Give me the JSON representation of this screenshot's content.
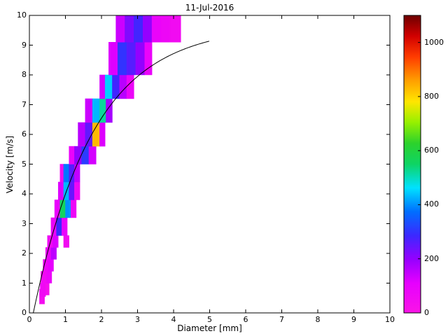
{
  "figure": {
    "background": "#ffffff",
    "axis_color": "#000000"
  },
  "chart_data": {
    "type": "heatmap",
    "title": "11-Jul-2016",
    "xlabel": "Diameter [mm]",
    "ylabel": "Velocity [m/s]",
    "xlim": [
      0,
      10
    ],
    "ylim": [
      0,
      10
    ],
    "grid": false,
    "x_ticks": [
      0,
      1,
      2,
      3,
      4,
      5,
      6,
      7,
      8,
      9,
      10
    ],
    "y_ticks": [
      0,
      1,
      2,
      3,
      4,
      5,
      6,
      7,
      8,
      9,
      10
    ],
    "colorbar": {
      "position": "right",
      "min": 0,
      "max": 1100,
      "ticks": [
        0,
        200,
        400,
        600,
        800,
        1000
      ]
    },
    "colormap_stops": [
      {
        "t": 0.0,
        "color": "#fa14e6"
      },
      {
        "t": 0.1,
        "color": "#e600ff"
      },
      {
        "t": 0.18,
        "color": "#9600ff"
      },
      {
        "t": 0.26,
        "color": "#3c28ff"
      },
      {
        "t": 0.34,
        "color": "#006eff"
      },
      {
        "t": 0.42,
        "color": "#00e1ff"
      },
      {
        "t": 0.5,
        "color": "#0ed464"
      },
      {
        "t": 0.57,
        "color": "#2cd22c"
      },
      {
        "t": 0.64,
        "color": "#96f000"
      },
      {
        "t": 0.71,
        "color": "#ffe600"
      },
      {
        "t": 0.78,
        "color": "#ffa000"
      },
      {
        "t": 0.86,
        "color": "#ff3c00"
      },
      {
        "t": 0.93,
        "color": "#d20000"
      },
      {
        "t": 1.0,
        "color": "#6e0000"
      }
    ],
    "cell_format": [
      "d_min_mm",
      "d_max_mm",
      "v_min_ms",
      "v_max_ms",
      "count"
    ],
    "cells": [
      [
        0.28,
        0.42,
        0.3,
        0.8,
        40
      ],
      [
        0.3,
        0.45,
        0.55,
        1.0,
        60
      ],
      [
        0.45,
        0.55,
        0.6,
        1.0,
        35
      ],
      [
        0.32,
        0.47,
        1.0,
        1.4,
        55
      ],
      [
        0.47,
        0.62,
        1.0,
        1.4,
        85
      ],
      [
        0.38,
        0.52,
        1.4,
        1.8,
        70
      ],
      [
        0.52,
        0.67,
        1.4,
        1.8,
        105
      ],
      [
        0.45,
        0.6,
        1.8,
        2.2,
        80
      ],
      [
        0.6,
        0.75,
        1.8,
        2.2,
        155
      ],
      [
        0.5,
        0.65,
        2.2,
        2.6,
        60
      ],
      [
        0.65,
        0.8,
        2.2,
        2.6,
        120
      ],
      [
        0.95,
        1.1,
        2.2,
        2.6,
        50
      ],
      [
        0.6,
        0.75,
        2.6,
        3.2,
        80
      ],
      [
        0.75,
        0.9,
        2.6,
        3.2,
        285
      ],
      [
        0.9,
        1.05,
        2.6,
        3.2,
        95
      ],
      [
        0.7,
        0.85,
        3.2,
        3.8,
        95
      ],
      [
        0.85,
        1.0,
        3.2,
        3.8,
        560
      ],
      [
        1.0,
        1.15,
        3.2,
        3.8,
        400
      ],
      [
        1.15,
        1.3,
        3.2,
        3.8,
        70
      ],
      [
        0.8,
        0.95,
        3.8,
        4.4,
        120
      ],
      [
        0.95,
        1.1,
        3.8,
        4.4,
        430
      ],
      [
        1.1,
        1.25,
        3.8,
        4.4,
        240
      ],
      [
        1.25,
        1.4,
        3.8,
        4.4,
        60
      ],
      [
        0.85,
        0.95,
        4.4,
        5.0,
        50
      ],
      [
        0.95,
        1.1,
        4.4,
        5.0,
        380
      ],
      [
        1.1,
        1.25,
        4.4,
        5.0,
        260
      ],
      [
        1.25,
        1.4,
        4.4,
        5.0,
        150
      ],
      [
        1.1,
        1.25,
        5.0,
        5.6,
        90
      ],
      [
        1.25,
        1.45,
        5.0,
        5.6,
        200
      ],
      [
        1.45,
        1.65,
        5.0,
        5.6,
        310
      ],
      [
        1.65,
        1.85,
        5.0,
        5.6,
        130
      ],
      [
        1.35,
        1.55,
        5.6,
        6.4,
        160
      ],
      [
        1.55,
        1.75,
        5.6,
        6.4,
        250
      ],
      [
        1.75,
        1.95,
        5.6,
        6.4,
        830
      ],
      [
        1.95,
        2.1,
        5.6,
        6.4,
        120
      ],
      [
        1.55,
        1.75,
        6.4,
        7.2,
        140
      ],
      [
        1.75,
        1.95,
        6.4,
        7.2,
        430
      ],
      [
        1.95,
        2.125,
        6.4,
        7.2,
        520
      ],
      [
        2.125,
        2.3,
        6.4,
        7.2,
        180
      ],
      [
        1.95,
        2.1,
        7.2,
        8.0,
        130
      ],
      [
        2.1,
        2.3,
        7.2,
        8.0,
        450
      ],
      [
        2.3,
        2.5,
        7.2,
        8.0,
        280
      ],
      [
        2.5,
        2.7,
        7.2,
        8.0,
        160
      ],
      [
        2.7,
        2.9,
        7.2,
        8.0,
        80
      ],
      [
        2.2,
        2.45,
        8.0,
        9.1,
        120
      ],
      [
        2.45,
        2.7,
        8.0,
        9.1,
        300
      ],
      [
        2.7,
        2.95,
        8.0,
        9.1,
        260
      ],
      [
        2.95,
        3.2,
        8.0,
        9.1,
        200
      ],
      [
        3.2,
        3.4,
        8.0,
        9.1,
        90
      ],
      [
        2.4,
        2.65,
        9.1,
        10.0,
        140
      ],
      [
        2.65,
        2.9,
        9.1,
        10.0,
        220
      ],
      [
        2.9,
        3.15,
        9.1,
        10.0,
        280
      ],
      [
        3.15,
        3.4,
        9.1,
        10.0,
        200
      ],
      [
        3.4,
        3.65,
        9.1,
        10.0,
        90
      ],
      [
        3.65,
        3.9,
        9.1,
        10.0,
        70
      ],
      [
        3.9,
        4.2,
        9.1,
        10.0,
        50
      ]
    ],
    "fit_curve": {
      "description": "terminal fall velocity curve",
      "formula": "v = 9.65 - 10.3 * exp(-0.6 * D)",
      "d_range": [
        0.109,
        5.0
      ],
      "color": "#000000"
    }
  }
}
